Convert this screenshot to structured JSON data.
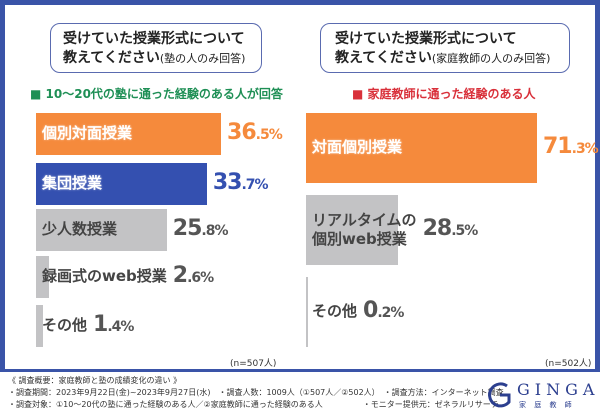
{
  "colors": {
    "frame": "#3a54a8",
    "orange": "#f58a3c",
    "blue": "#3450b0",
    "gray": "#c3c3c5",
    "green": "#1e8f55",
    "red": "#d9303a"
  },
  "chart_data": [
    {
      "type": "bar",
      "orientation": "horizontal",
      "title_line1": "受けていた授業形式について",
      "title_line2": "教えてください",
      "title_note": "(塾の人のみ回答)",
      "subtitle": "10〜20代の塾に通った経験のある人が回答",
      "categories": [
        "個別対面授業",
        "集団授業",
        "少人数授業",
        "録画式のweb授業",
        "その他"
      ],
      "values": [
        36.5,
        33.7,
        25.8,
        2.6,
        1.4
      ],
      "unit": "%",
      "n_label": "(n=507人)"
    },
    {
      "type": "bar",
      "orientation": "horizontal",
      "title_line1": "受けていた授業形式について",
      "title_line2": "教えてください",
      "title_note": "(家庭教師の人のみ回答)",
      "subtitle": "家庭教師に通った経験のある人",
      "categories": [
        "対面個別授業",
        "リアルタイムの\n個別web授業",
        "その他"
      ],
      "values": [
        71.3,
        28.5,
        0.2
      ],
      "unit": "%",
      "n_label": "(n=502人)"
    }
  ],
  "footer": {
    "lines": "《 調査概要：家庭教師と塾の成績変化の違い 》\n・調査期間：2023年9月22日(金)~2023年9月27日(水)　・調査人数：1009人（①507人／②502人）　・調査方法：インターネット調査\n・調査対象：①10〜20代の塾に通った経験のある人／②家庭教師に通った経験のある人　　　　　・モニター提供元：ゼネラルリサーチ"
  },
  "logo": {
    "brand": "GINGA",
    "sub": "家 庭 教 師"
  }
}
